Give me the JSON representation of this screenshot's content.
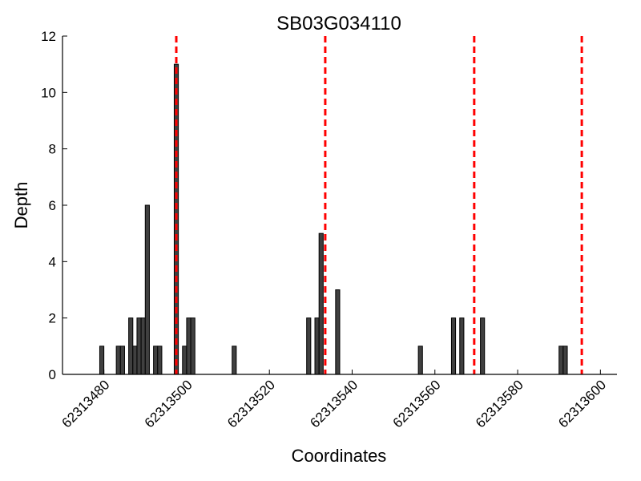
{
  "chart_data": {
    "type": "bar",
    "title": "SB03G034110",
    "xlabel": "Coordinates",
    "ylabel": "Depth",
    "xlim": [
      62313470,
      62313604
    ],
    "ylim": [
      0,
      12
    ],
    "xticks": [
      62313480,
      62313500,
      62313520,
      62313540,
      62313560,
      62313580,
      62313600
    ],
    "yticks": [
      0,
      2,
      4,
      6,
      8,
      10,
      12
    ],
    "bar_width": 1,
    "bar_color": "#404040",
    "marker_color": "#ff0000",
    "grid": false,
    "bars": [
      {
        "x": 62313479,
        "y": 1
      },
      {
        "x": 62313483,
        "y": 1
      },
      {
        "x": 62313484,
        "y": 1
      },
      {
        "x": 62313486,
        "y": 2
      },
      {
        "x": 62313487,
        "y": 1
      },
      {
        "x": 62313488,
        "y": 2
      },
      {
        "x": 62313489,
        "y": 2
      },
      {
        "x": 62313490,
        "y": 6
      },
      {
        "x": 62313492,
        "y": 1
      },
      {
        "x": 62313493,
        "y": 1
      },
      {
        "x": 62313497,
        "y": 11
      },
      {
        "x": 62313499,
        "y": 1
      },
      {
        "x": 62313500,
        "y": 2
      },
      {
        "x": 62313501,
        "y": 2
      },
      {
        "x": 62313511,
        "y": 1
      },
      {
        "x": 62313529,
        "y": 2
      },
      {
        "x": 62313531,
        "y": 2
      },
      {
        "x": 62313532,
        "y": 5
      },
      {
        "x": 62313536,
        "y": 3
      },
      {
        "x": 62313556,
        "y": 1
      },
      {
        "x": 62313564,
        "y": 2
      },
      {
        "x": 62313566,
        "y": 2
      },
      {
        "x": 62313571,
        "y": 2
      },
      {
        "x": 62313590,
        "y": 1
      },
      {
        "x": 62313591,
        "y": 1
      }
    ],
    "markers": [
      62313497.5,
      62313533.5,
      62313569.5,
      62313595.5
    ]
  }
}
